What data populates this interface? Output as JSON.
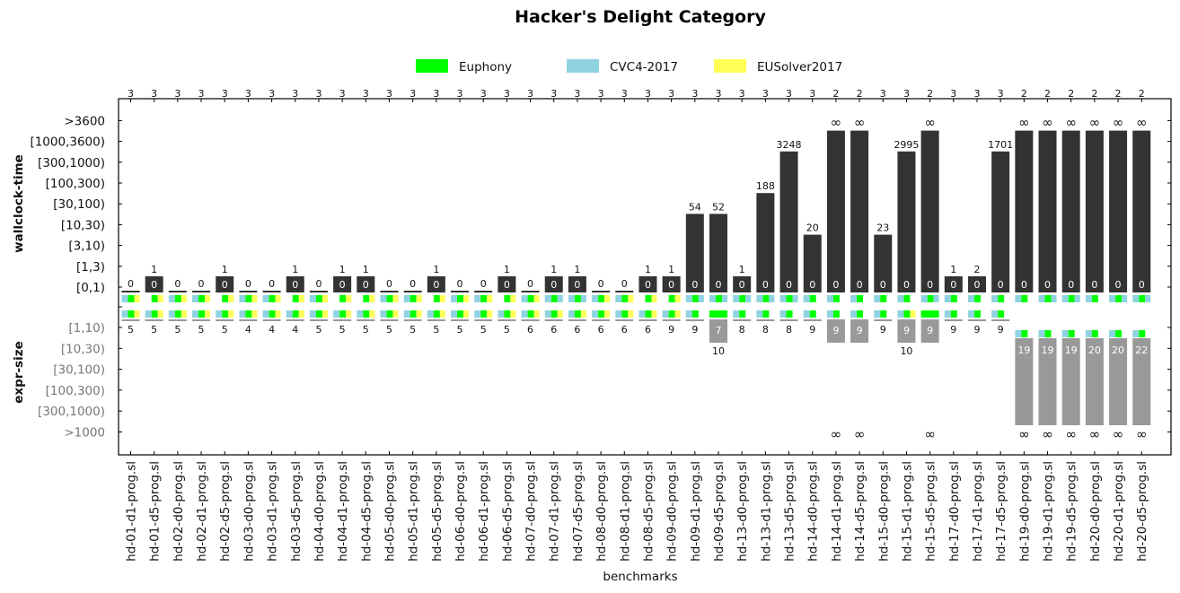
{
  "chart_data": {
    "type": "bar",
    "title": "Hacker's Delight Category",
    "xlabel": "benchmarks",
    "legend": {
      "placement": "top-center",
      "entries": [
        {
          "name": "Euphony",
          "color": "#00ff00"
        },
        {
          "name": "CVC4-2017",
          "color": "#8fd3e0"
        },
        {
          "name": "EUSolver2017",
          "color": "#ffff55"
        }
      ]
    },
    "top_panel": {
      "ylabel": "wallclock-time",
      "bins": [
        "[0,1)",
        "[1,3)",
        "[3,10)",
        "[10,30)",
        "[30,100)",
        "[100,300)",
        "[300,1000)",
        "[1000,3600)",
        ">3600"
      ],
      "bar_color": "#333333"
    },
    "bottom_panel": {
      "ylabel": "expr-size",
      "bins": [
        "[1,10)",
        "[10,30)",
        "[30,100)",
        "[100,300)",
        "[300,1000)",
        ">1000"
      ],
      "bar_color": "#999999"
    },
    "infinity_symbol": "∞",
    "benchmarks": [
      "hd-01-d1-prog.sl",
      "hd-01-d5-prog.sl",
      "hd-02-d0-prog.sl",
      "hd-02-d1-prog.sl",
      "hd-02-d5-prog.sl",
      "hd-03-d0-prog.sl",
      "hd-03-d1-prog.sl",
      "hd-03-d5-prog.sl",
      "hd-04-d0-prog.sl",
      "hd-04-d1-prog.sl",
      "hd-04-d5-prog.sl",
      "hd-05-d0-prog.sl",
      "hd-05-d1-prog.sl",
      "hd-05-d5-prog.sl",
      "hd-06-d0-prog.sl",
      "hd-06-d1-prog.sl",
      "hd-06-d5-prog.sl",
      "hd-07-d0-prog.sl",
      "hd-07-d1-prog.sl",
      "hd-07-d5-prog.sl",
      "hd-08-d0-prog.sl",
      "hd-08-d1-prog.sl",
      "hd-08-d5-prog.sl",
      "hd-09-d0-prog.sl",
      "hd-09-d1-prog.sl",
      "hd-09-d5-prog.sl",
      "hd-13-d0-prog.sl",
      "hd-13-d1-prog.sl",
      "hd-13-d5-prog.sl",
      "hd-14-d0-prog.sl",
      "hd-14-d1-prog.sl",
      "hd-14-d5-prog.sl",
      "hd-15-d0-prog.sl",
      "hd-15-d1-prog.sl",
      "hd-15-d5-prog.sl",
      "hd-17-d0-prog.sl",
      "hd-17-d1-prog.sl",
      "hd-17-d5-prog.sl",
      "hd-19-d0-prog.sl",
      "hd-19-d1-prog.sl",
      "hd-19-d5-prog.sl",
      "hd-20-d0-prog.sl",
      "hd-20-d1-prog.sl",
      "hd-20-d5-prog.sl"
    ],
    "solved_count": [
      3,
      3,
      3,
      3,
      3,
      3,
      3,
      3,
      3,
      3,
      3,
      3,
      3,
      3,
      3,
      3,
      3,
      3,
      3,
      3,
      3,
      3,
      3,
      3,
      3,
      3,
      3,
      3,
      3,
      3,
      2,
      2,
      3,
      3,
      2,
      3,
      3,
      3,
      2,
      2,
      2,
      2,
      2,
      2
    ],
    "euphony_time_label": [
      "0",
      "1",
      "0",
      "0",
      "1",
      "0",
      "0",
      "1",
      "0",
      "1",
      "1",
      "0",
      "0",
      "1",
      "0",
      "0",
      "1",
      "0",
      "1",
      "1",
      "0",
      "0",
      "1",
      "1",
      "54",
      "52",
      "1",
      "188",
      "3248",
      "20",
      "∞",
      "∞",
      "23",
      "2995",
      "∞",
      "1",
      "2",
      "1701",
      "∞",
      "∞",
      "∞",
      "∞",
      "∞",
      "∞"
    ],
    "euphony_time_bin": [
      0,
      1,
      0,
      0,
      1,
      0,
      0,
      1,
      0,
      1,
      1,
      0,
      0,
      1,
      0,
      0,
      1,
      0,
      1,
      1,
      0,
      0,
      1,
      1,
      4,
      4,
      1,
      5,
      7,
      3,
      8,
      8,
      3,
      7,
      8,
      1,
      1,
      7,
      8,
      8,
      8,
      8,
      8,
      8
    ],
    "best_time_label": [
      "0",
      "0",
      "0",
      "0",
      "0",
      "0",
      "0",
      "0",
      "0",
      "0",
      "0",
      "0",
      "0",
      "0",
      "0",
      "0",
      "0",
      "0",
      "0",
      "0",
      "0",
      "0",
      "0",
      "0",
      "0",
      "0",
      "0",
      "0",
      "0",
      "0",
      "0",
      "0",
      "0",
      "0",
      "0",
      "0",
      "0",
      "0",
      "0",
      "0",
      "0",
      "0",
      "0",
      "0"
    ],
    "time_marks": [
      [
        1,
        1,
        1
      ],
      [
        1,
        0,
        1
      ],
      [
        1,
        1,
        1
      ],
      [
        1,
        1,
        1
      ],
      [
        1,
        0,
        1
      ],
      [
        1,
        1,
        1
      ],
      [
        1,
        1,
        1
      ],
      [
        1,
        0,
        1
      ],
      [
        1,
        1,
        1
      ],
      [
        1,
        0,
        1
      ],
      [
        1,
        0,
        1
      ],
      [
        1,
        1,
        1
      ],
      [
        1,
        1,
        1
      ],
      [
        1,
        0,
        1
      ],
      [
        1,
        1,
        1
      ],
      [
        1,
        1,
        1
      ],
      [
        1,
        0,
        1
      ],
      [
        1,
        1,
        1
      ],
      [
        1,
        0,
        0
      ],
      [
        1,
        0,
        0
      ],
      [
        1,
        1,
        1
      ],
      [
        1,
        1,
        1
      ],
      [
        1,
        0,
        1
      ],
      [
        1,
        0,
        1
      ],
      [
        1,
        0,
        0
      ],
      [
        1,
        0,
        0
      ],
      [
        1,
        0,
        0
      ],
      [
        1,
        0,
        0
      ],
      [
        1,
        0,
        0
      ],
      [
        1,
        1,
        0
      ],
      [
        1,
        1,
        0
      ],
      [
        1,
        1,
        0
      ],
      [
        1,
        1,
        0
      ],
      [
        1,
        1,
        0
      ],
      [
        1,
        0,
        0
      ],
      [
        1,
        1,
        0
      ],
      [
        1,
        1,
        0
      ],
      [
        1,
        1,
        0
      ],
      [
        1,
        1,
        0
      ],
      [
        1,
        0,
        0
      ],
      [
        1,
        0,
        0
      ],
      [
        1,
        1,
        0
      ],
      [
        1,
        0,
        0
      ],
      [
        1,
        0,
        0
      ]
    ],
    "euphony_size": [
      "5",
      "5",
      "5",
      "5",
      "5",
      "4",
      "4",
      "4",
      "5",
      "5",
      "5",
      "5",
      "5",
      "5",
      "5",
      "5",
      "5",
      "6",
      "6",
      "6",
      "6",
      "6",
      "6",
      "9",
      "9",
      "10",
      "8",
      "8",
      "8",
      "9",
      "∞",
      "∞",
      "9",
      "10",
      "∞",
      "9",
      "9",
      "9",
      "∞",
      "∞",
      "∞",
      "∞",
      "∞",
      "∞"
    ],
    "euphony_size_bin": [
      0,
      0,
      0,
      0,
      0,
      0,
      0,
      0,
      0,
      0,
      0,
      0,
      0,
      0,
      0,
      0,
      0,
      0,
      0,
      0,
      0,
      0,
      0,
      0,
      0,
      1,
      0,
      0,
      0,
      0,
      5,
      5,
      0,
      1,
      5,
      0,
      0,
      0,
      5,
      5,
      5,
      5,
      5,
      5
    ],
    "best_size_label": [
      "",
      "",
      "",
      "",
      "",
      "",
      "",
      "",
      "",
      "",
      "",
      "",
      "",
      "",
      "",
      "",
      "",
      "",
      "",
      "",
      "",
      "",
      "",
      "",
      "",
      "7",
      "",
      "",
      "",
      "",
      "9",
      "9",
      "",
      "9",
      "9",
      "",
      "",
      "",
      "19",
      "19",
      "19",
      "20",
      "20",
      "22"
    ],
    "best_size_bin": [
      0,
      0,
      0,
      0,
      0,
      0,
      0,
      0,
      0,
      0,
      0,
      0,
      0,
      0,
      0,
      0,
      0,
      0,
      0,
      0,
      0,
      0,
      0,
      0,
      0,
      0,
      0,
      0,
      0,
      0,
      0,
      0,
      0,
      0,
      0,
      0,
      0,
      0,
      1,
      1,
      1,
      1,
      1,
      1
    ],
    "size_marks": [
      [
        1,
        1,
        1
      ],
      [
        1,
        1,
        1
      ],
      [
        1,
        1,
        1
      ],
      [
        1,
        1,
        1
      ],
      [
        1,
        1,
        1
      ],
      [
        1,
        1,
        1
      ],
      [
        1,
        1,
        1
      ],
      [
        1,
        1,
        1
      ],
      [
        1,
        1,
        1
      ],
      [
        1,
        1,
        1
      ],
      [
        1,
        1,
        1
      ],
      [
        1,
        1,
        1
      ],
      [
        1,
        1,
        1
      ],
      [
        1,
        1,
        1
      ],
      [
        1,
        1,
        1
      ],
      [
        1,
        1,
        1
      ],
      [
        1,
        1,
        1
      ],
      [
        1,
        1,
        1
      ],
      [
        1,
        1,
        1
      ],
      [
        1,
        1,
        1
      ],
      [
        1,
        1,
        1
      ],
      [
        1,
        1,
        1
      ],
      [
        1,
        1,
        1
      ],
      [
        1,
        1,
        1
      ],
      [
        1,
        1,
        0
      ],
      [
        1,
        0,
        0
      ],
      [
        1,
        1,
        0
      ],
      [
        1,
        1,
        0
      ],
      [
        1,
        1,
        0
      ],
      [
        1,
        1,
        0
      ],
      [
        1,
        1,
        0
      ],
      [
        1,
        1,
        0
      ],
      [
        1,
        1,
        0
      ],
      [
        1,
        1,
        1
      ],
      [
        1,
        0,
        0
      ],
      [
        1,
        1,
        0
      ],
      [
        1,
        1,
        0
      ],
      [
        1,
        1,
        0
      ],
      [
        1,
        1,
        0
      ],
      [
        1,
        1,
        0
      ],
      [
        1,
        1,
        0
      ],
      [
        1,
        1,
        0
      ],
      [
        1,
        1,
        0
      ],
      [
        1,
        1,
        0
      ]
    ]
  }
}
